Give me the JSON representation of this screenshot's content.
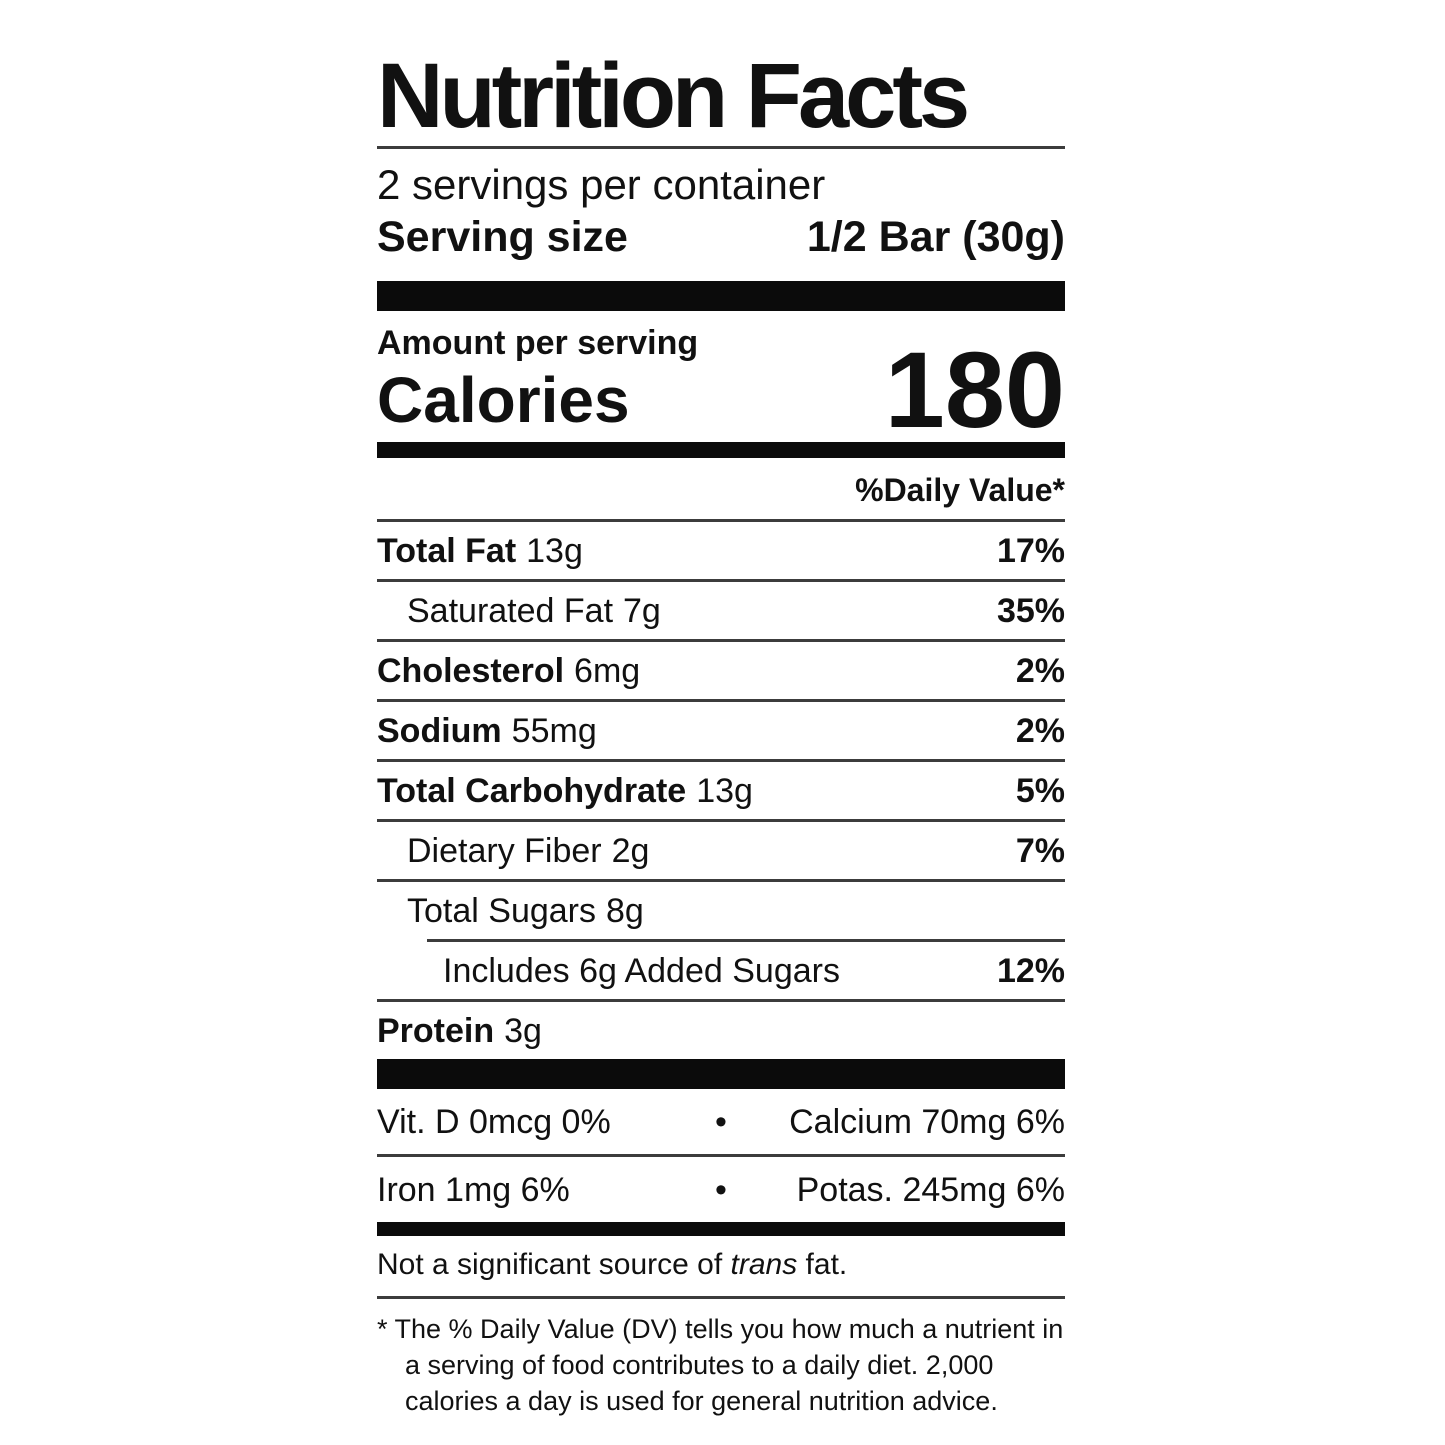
{
  "colors": {
    "background": "#ffffff",
    "text": "#111111",
    "bar": "#0b0b0b",
    "hairline": "#3c3c3c"
  },
  "label": {
    "title": "Nutrition Facts",
    "servings_per_container": "2 servings per container",
    "serving_size": {
      "label": "Serving size",
      "value": "1/2 Bar (30g)"
    },
    "amount_per_serving": "Amount per serving",
    "calories": {
      "label": "Calories",
      "value": "180"
    },
    "daily_value_header": "%Daily Value*",
    "nutrients": [
      {
        "name": "Total Fat",
        "amount": "13g",
        "dv": "17%",
        "bold": true,
        "indent": 0,
        "rule_below": "full"
      },
      {
        "name": "Saturated Fat",
        "amount": "7g",
        "dv": "35%",
        "bold": false,
        "indent": 1,
        "rule_below": "full"
      },
      {
        "name": "Cholesterol",
        "amount": "6mg",
        "dv": "2%",
        "bold": true,
        "indent": 0,
        "rule_below": "full"
      },
      {
        "name": "Sodium",
        "amount": "55mg",
        "dv": "2%",
        "bold": true,
        "indent": 0,
        "rule_below": "full"
      },
      {
        "name": "Total Carbohydrate",
        "amount": "13g",
        "dv": "5%",
        "bold": true,
        "indent": 0,
        "rule_below": "full"
      },
      {
        "name": "Dietary Fiber",
        "amount": "2g",
        "dv": "7%",
        "bold": false,
        "indent": 1,
        "rule_below": "full"
      },
      {
        "name": "Total Sugars",
        "amount": "8g",
        "dv": "",
        "bold": false,
        "indent": 1,
        "rule_below": "indent"
      },
      {
        "name": "Includes 6g Added Sugars",
        "amount": "",
        "dv": "12%",
        "bold": false,
        "indent": 2,
        "rule_below": "full"
      },
      {
        "name": "Protein",
        "amount": "3g",
        "dv": "",
        "bold": true,
        "indent": 0,
        "rule_below": "none"
      }
    ],
    "micronutrients": {
      "bullet": "•",
      "rows": [
        {
          "left": "Vit. D 0mcg 0%",
          "right": "Calcium 70mg 6%",
          "rule_below": "full"
        },
        {
          "left": "Iron 1mg 6%",
          "right": "Potas. 245mg 6%",
          "rule_below": "none"
        }
      ]
    },
    "trans_note": {
      "prefix": "Not a significant source of ",
      "italic": "trans",
      "suffix": " fat."
    },
    "footnote": {
      "lines": [
        "* The % Daily Value (DV) tells you how much a nutrient in",
        "a serving of food contributes to a daily diet. 2,000",
        "calories a day is used for general nutrition advice."
      ]
    }
  }
}
